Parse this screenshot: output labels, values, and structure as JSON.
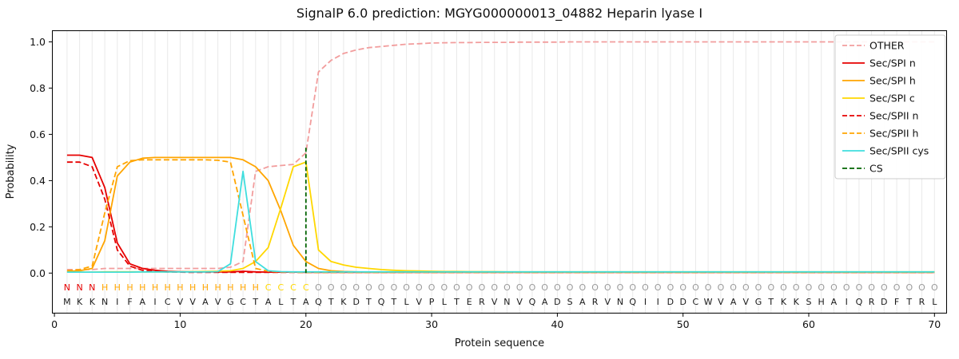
{
  "chart_data": {
    "type": "line",
    "title": "SignalP 6.0 prediction: MGYG000000013_04882 Heparin lyase I",
    "xlabel": "Protein sequence",
    "ylabel": "Probability",
    "xticks": [
      0,
      10,
      20,
      30,
      40,
      50,
      60,
      70
    ],
    "yticks": [
      "0.0",
      "0.2",
      "0.4",
      "0.6",
      "0.8",
      "1.0"
    ],
    "xlim": [
      -0.2,
      71
    ],
    "ylim": [
      -0.175,
      1.05
    ],
    "grid": "vertical line per residue",
    "legend_position": "upper right",
    "colors": {
      "grid": "#e9e9e9",
      "axis": "#000000",
      "sequence_text": "#1a1a1a"
    },
    "sequence": "MKKNIFAICVVAVGCTALTAQTKDTQTLVPLTERVNVQADSARVNQIIDDCWVAVGTKKSHAIQRDFTRL",
    "region_labels": "NNNHHHHHHHHHHHHHCCCCOOOOOOOOOOOOOOOOOOOOOOOOOOOOOOOOOOOOOOOOOOOOOOOOOO",
    "region_colors": {
      "N": "#e60000",
      "H": "#ffa500",
      "C": "#ffd700",
      "O": "#9a9a9a"
    },
    "cs": {
      "label": "CS",
      "position": 20,
      "top": 0.55,
      "color": "#006400"
    },
    "series": [
      {
        "name": "OTHER",
        "color": "#f29d9d",
        "style": "dashed",
        "values": [
          0.015,
          0.015,
          0.015,
          0.02,
          0.02,
          0.02,
          0.02,
          0.02,
          0.02,
          0.02,
          0.02,
          0.02,
          0.02,
          0.025,
          0.05,
          0.44,
          0.46,
          0.465,
          0.47,
          0.52,
          0.87,
          0.92,
          0.95,
          0.965,
          0.975,
          0.98,
          0.985,
          0.99,
          0.992,
          0.995,
          0.996,
          0.997,
          0.997,
          0.998,
          0.998,
          0.998,
          0.999,
          0.999,
          0.999,
          0.999,
          1.0,
          1.0,
          1.0,
          1.0,
          1.0,
          1.0,
          1.0,
          1.0,
          1.0,
          1.0,
          1.0,
          1.0,
          1.0,
          1.0,
          1.0,
          1.0,
          1.0,
          1.0,
          1.0,
          1.0,
          1.0,
          1.0,
          1.0,
          1.0,
          1.0,
          1.0,
          1.0,
          1.0,
          1.0,
          1.0
        ]
      },
      {
        "name": "Sec/SPI n",
        "color": "#e60000",
        "style": "solid",
        "values": [
          0.51,
          0.51,
          0.5,
          0.37,
          0.13,
          0.04,
          0.02,
          0.012,
          0.008,
          0.006,
          0.005,
          0.005,
          0.005,
          0.005,
          0.008,
          0.005,
          0.004,
          0.004,
          0.004,
          0.003,
          0.003,
          0.003,
          0.003,
          0.003,
          0.003,
          0.003,
          0.003,
          0.003,
          0.003,
          0.003,
          0.003,
          0.003,
          0.003,
          0.003,
          0.003,
          0.003,
          0.003,
          0.003,
          0.003,
          0.003,
          0.003,
          0.003,
          0.003,
          0.003,
          0.003,
          0.003,
          0.003,
          0.003,
          0.003,
          0.003,
          0.003,
          0.003,
          0.003,
          0.003,
          0.003,
          0.003,
          0.003,
          0.003,
          0.003,
          0.003,
          0.003,
          0.003,
          0.003,
          0.003,
          0.003,
          0.003,
          0.003,
          0.003,
          0.003,
          0.003
        ]
      },
      {
        "name": "Sec/SPI h",
        "color": "#ffa500",
        "style": "solid",
        "values": [
          0.008,
          0.01,
          0.02,
          0.14,
          0.42,
          0.48,
          0.497,
          0.5,
          0.5,
          0.5,
          0.5,
          0.5,
          0.5,
          0.5,
          0.49,
          0.46,
          0.4,
          0.27,
          0.12,
          0.05,
          0.02,
          0.01,
          0.007,
          0.005,
          0.004,
          0.004,
          0.004,
          0.004,
          0.004,
          0.004,
          0.004,
          0.004,
          0.004,
          0.004,
          0.004,
          0.004,
          0.004,
          0.004,
          0.004,
          0.004,
          0.004,
          0.004,
          0.004,
          0.004,
          0.004,
          0.004,
          0.004,
          0.004,
          0.004,
          0.004,
          0.004,
          0.004,
          0.004,
          0.004,
          0.004,
          0.004,
          0.004,
          0.004,
          0.004,
          0.004,
          0.004,
          0.004,
          0.004,
          0.004,
          0.004,
          0.004,
          0.004,
          0.004,
          0.004,
          0.004
        ]
      },
      {
        "name": "Sec/SPI c",
        "color": "#ffd700",
        "style": "solid",
        "values": [
          0.004,
          0.004,
          0.004,
          0.005,
          0.005,
          0.005,
          0.005,
          0.005,
          0.005,
          0.005,
          0.006,
          0.007,
          0.008,
          0.01,
          0.02,
          0.05,
          0.11,
          0.28,
          0.46,
          0.48,
          0.1,
          0.05,
          0.035,
          0.025,
          0.02,
          0.015,
          0.012,
          0.01,
          0.009,
          0.008,
          0.007,
          0.007,
          0.006,
          0.006,
          0.006,
          0.005,
          0.005,
          0.005,
          0.005,
          0.005,
          0.005,
          0.005,
          0.005,
          0.005,
          0.005,
          0.005,
          0.005,
          0.005,
          0.005,
          0.005,
          0.005,
          0.005,
          0.005,
          0.005,
          0.005,
          0.005,
          0.005,
          0.005,
          0.005,
          0.005,
          0.005,
          0.005,
          0.005,
          0.005,
          0.005,
          0.005,
          0.005,
          0.005,
          0.005,
          0.005
        ]
      },
      {
        "name": "Sec/SPII n",
        "color": "#e60000",
        "style": "dashed",
        "values": [
          0.48,
          0.48,
          0.46,
          0.32,
          0.1,
          0.03,
          0.012,
          0.007,
          0.005,
          0.004,
          0.003,
          0.003,
          0.003,
          0.003,
          0.003,
          0.003,
          0.003,
          0.003,
          0.003,
          0.003,
          0.003,
          0.003,
          0.003,
          0.003,
          0.003,
          0.003,
          0.003,
          0.003,
          0.003,
          0.003,
          0.003,
          0.003,
          0.003,
          0.003,
          0.003,
          0.003,
          0.003,
          0.003,
          0.003,
          0.003,
          0.003,
          0.003,
          0.003,
          0.003,
          0.003,
          0.003,
          0.003,
          0.003,
          0.003,
          0.003,
          0.003,
          0.003,
          0.003,
          0.003,
          0.003,
          0.003,
          0.003,
          0.003,
          0.003,
          0.003,
          0.003,
          0.003,
          0.003,
          0.003,
          0.003,
          0.003,
          0.003,
          0.003,
          0.003,
          0.003
        ]
      },
      {
        "name": "Sec/SPII h",
        "color": "#ffa500",
        "style": "dashed",
        "values": [
          0.01,
          0.015,
          0.03,
          0.26,
          0.46,
          0.486,
          0.49,
          0.49,
          0.49,
          0.49,
          0.49,
          0.49,
          0.488,
          0.48,
          0.25,
          0.02,
          0.008,
          0.005,
          0.004,
          0.003,
          0.003,
          0.003,
          0.003,
          0.003,
          0.003,
          0.003,
          0.003,
          0.003,
          0.003,
          0.003,
          0.003,
          0.003,
          0.003,
          0.003,
          0.003,
          0.003,
          0.003,
          0.003,
          0.003,
          0.003,
          0.003,
          0.003,
          0.003,
          0.003,
          0.003,
          0.003,
          0.003,
          0.003,
          0.003,
          0.003,
          0.003,
          0.003,
          0.003,
          0.003,
          0.003,
          0.003,
          0.003,
          0.003,
          0.003,
          0.003,
          0.003,
          0.003,
          0.003,
          0.003,
          0.003,
          0.003,
          0.003,
          0.003,
          0.003,
          0.003
        ]
      },
      {
        "name": "Sec/SPII cys",
        "color": "#3fdede",
        "style": "solid",
        "values": [
          0.004,
          0.004,
          0.004,
          0.004,
          0.004,
          0.004,
          0.005,
          0.005,
          0.005,
          0.005,
          0.005,
          0.005,
          0.006,
          0.04,
          0.44,
          0.05,
          0.01,
          0.006,
          0.005,
          0.005,
          0.005,
          0.005,
          0.005,
          0.005,
          0.005,
          0.005,
          0.005,
          0.005,
          0.005,
          0.005,
          0.005,
          0.005,
          0.005,
          0.005,
          0.005,
          0.005,
          0.005,
          0.005,
          0.005,
          0.005,
          0.005,
          0.005,
          0.005,
          0.005,
          0.005,
          0.005,
          0.005,
          0.005,
          0.005,
          0.005,
          0.005,
          0.005,
          0.005,
          0.005,
          0.005,
          0.005,
          0.005,
          0.005,
          0.005,
          0.005,
          0.005,
          0.005,
          0.005,
          0.005,
          0.005,
          0.005,
          0.005,
          0.005,
          0.005,
          0.005
        ]
      }
    ],
    "legend": [
      "OTHER",
      "Sec/SPI n",
      "Sec/SPI h",
      "Sec/SPI c",
      "Sec/SPII n",
      "Sec/SPII h",
      "Sec/SPII cys",
      "CS"
    ]
  }
}
